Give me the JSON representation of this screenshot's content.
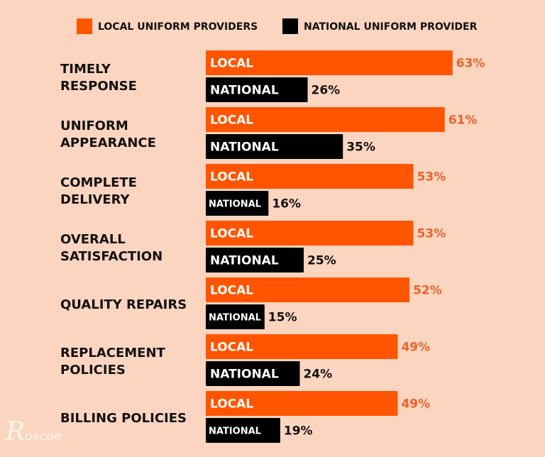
{
  "chart_data": {
    "type": "bar",
    "orientation": "horizontal",
    "legend_placement": "top",
    "categories": [
      [
        "TIMELY",
        "RESPONSE"
      ],
      [
        "UNIFORM",
        "APPEARANCE"
      ],
      [
        "COMPLETE",
        "DELIVERY"
      ],
      [
        "OVERALL",
        "SATISFACTION"
      ],
      [
        "QUALITY REPAIRS"
      ],
      [
        "REPLACEMENT",
        "POLICIES"
      ],
      [
        "BILLING POLICIES"
      ]
    ],
    "series": [
      {
        "name": "LOCAL UNIFORM PROVIDERS",
        "bar_label": "LOCAL",
        "color": "#ff5500",
        "value_color": "#e8632a",
        "values": [
          63,
          61,
          53,
          53,
          52,
          49,
          49
        ]
      },
      {
        "name": "NATIONAL UNIFORM PROVIDER",
        "bar_label": "NATIONAL",
        "color": "#000000",
        "value_color": "#111111",
        "values": [
          26,
          35,
          16,
          25,
          15,
          24,
          19
        ]
      }
    ],
    "unit": "%",
    "grid": false
  },
  "logo": {
    "text": "Roscoe",
    "first": "R",
    "rest": "oscoe"
  },
  "background": "#fcd5c0"
}
